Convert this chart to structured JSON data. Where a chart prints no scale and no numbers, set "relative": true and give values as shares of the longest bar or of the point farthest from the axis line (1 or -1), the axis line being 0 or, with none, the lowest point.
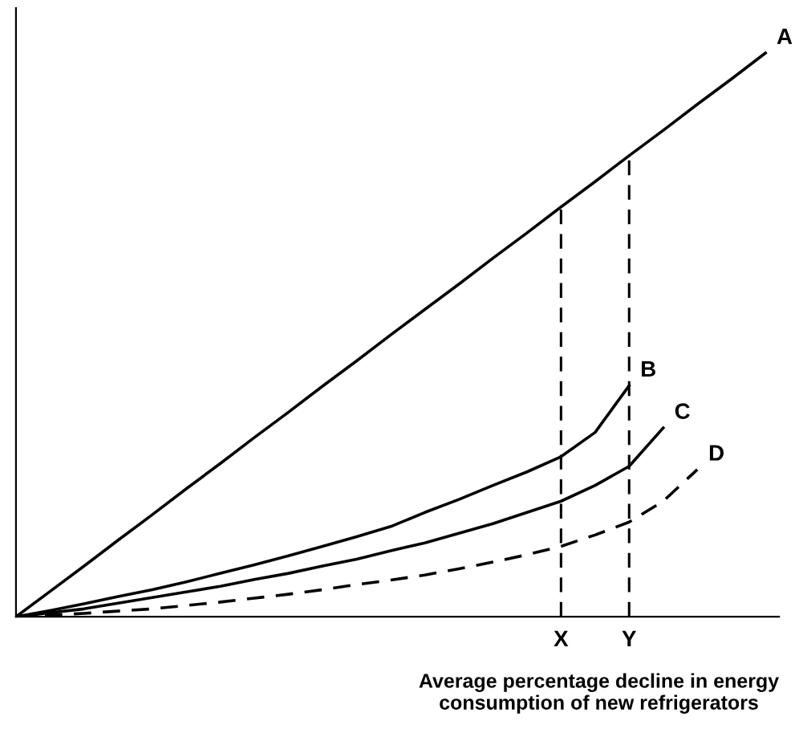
{
  "chart_data": {
    "type": "line",
    "relative": true,
    "xlabel": "Average percentage decline in energy\nconsumption of new refrigerators",
    "categories": [
      null,
      null,
      null,
      null,
      null,
      null,
      null,
      null,
      null,
      null,
      null,
      null,
      null,
      null,
      null,
      null,
      "X",
      null,
      "Y",
      null,
      null,
      null,
      null
    ],
    "series": [
      {
        "name": "A",
        "color": "#000000",
        "line_style": "solid",
        "values": [
          0,
          0.045,
          0.09,
          0.136,
          0.181,
          0.227,
          0.272,
          0.318,
          0.363,
          0.409,
          0.454,
          0.5,
          0.545,
          0.59,
          0.636,
          0.681,
          0.727,
          0.772,
          0.818,
          0.863,
          0.909,
          0.954,
          1.0
        ]
      },
      {
        "name": "B",
        "color": "#000000",
        "line_style": "solid",
        "values": [
          0,
          0.011,
          0.023,
          0.036,
          0.048,
          0.062,
          0.077,
          0.092,
          0.108,
          0.125,
          0.142,
          0.16,
          0.185,
          0.208,
          0.233,
          0.257,
          0.284,
          0.327,
          0.41,
          null,
          null,
          null,
          null
        ]
      },
      {
        "name": "C",
        "color": "#000000",
        "line_style": "solid",
        "values": [
          0,
          0.007,
          0.014,
          0.024,
          0.034,
          0.044,
          0.054,
          0.066,
          0.077,
          0.09,
          0.102,
          0.117,
          0.131,
          0.148,
          0.165,
          0.185,
          0.205,
          0.233,
          0.267,
          0.335,
          null,
          null,
          null
        ]
      },
      {
        "name": "D",
        "color": "#000000",
        "line_style": "dashed",
        "values": [
          0,
          0.003,
          0.006,
          0.01,
          0.014,
          0.02,
          0.026,
          0.033,
          0.04,
          0.048,
          0.057,
          0.065,
          0.074,
          0.085,
          0.097,
          0.11,
          0.125,
          0.145,
          0.168,
          0.205,
          0.261,
          null,
          null
        ]
      }
    ],
    "ref_lines": [
      {
        "axis": "x",
        "value": "X",
        "line_style": "dashed",
        "color": "#000000"
      },
      {
        "axis": "x",
        "value": "Y",
        "line_style": "dashed",
        "color": "#000000"
      }
    ],
    "grid": false,
    "legend": false,
    "marker": "none",
    "tick_labels": "x"
  }
}
